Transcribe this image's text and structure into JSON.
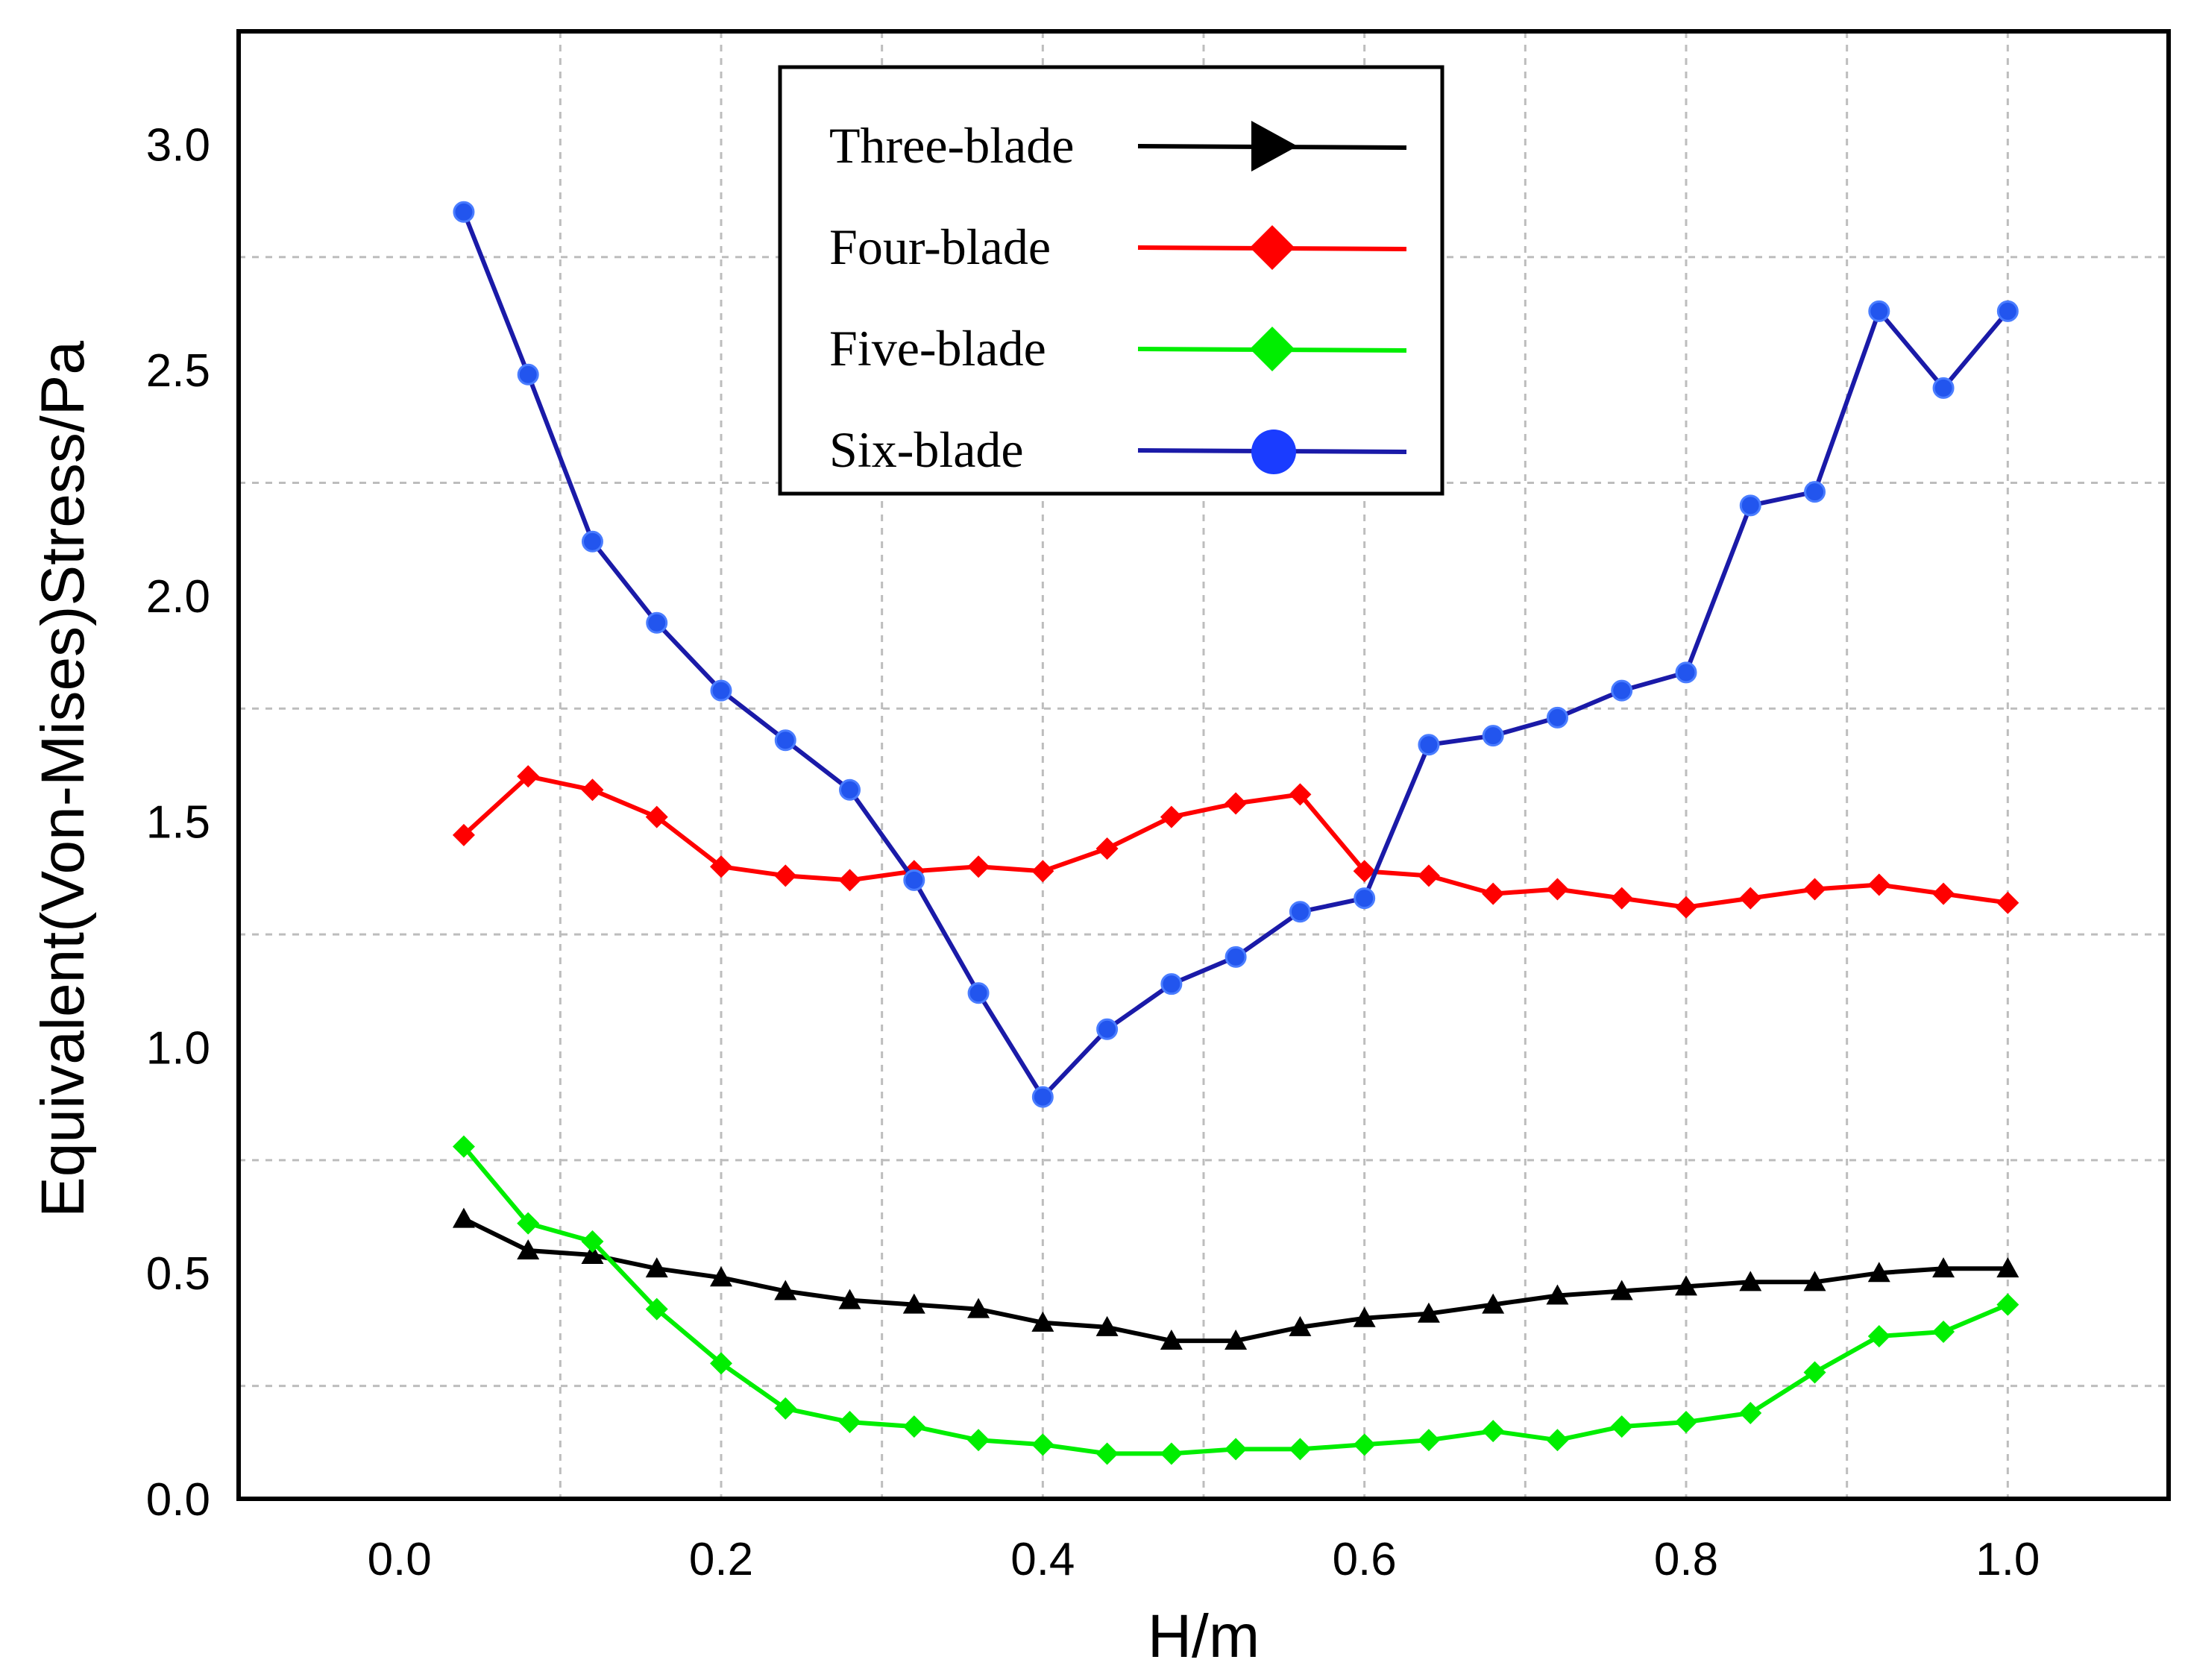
{
  "chart_data": {
    "type": "line",
    "title": "",
    "xlabel": "H/m",
    "ylabel": "Equivalent(Von-Mises)Stress/Pa",
    "xlim": [
      -0.1,
      1.1
    ],
    "ylim": [
      0.0,
      3.25
    ],
    "xticks": [
      "0.0",
      "0.2",
      "0.4",
      "0.6",
      "0.8",
      "1.0"
    ],
    "yticks": [
      "0.0",
      "0.5",
      "1.0",
      "1.5",
      "2.0",
      "2.5",
      "3.0"
    ],
    "grid": true,
    "legend_position": "top-center",
    "x": [
      0.04,
      0.08,
      0.12,
      0.16,
      0.2,
      0.24,
      0.28,
      0.32,
      0.36,
      0.4,
      0.44,
      0.48,
      0.52,
      0.56,
      0.6,
      0.64,
      0.68,
      0.72,
      0.76,
      0.8,
      0.84,
      0.88,
      0.92,
      0.96,
      1.0
    ],
    "series": [
      {
        "name": "Three-blade",
        "color": "#000000",
        "marker": "triangle",
        "values": [
          0.62,
          0.55,
          0.54,
          0.51,
          0.49,
          0.46,
          0.44,
          0.43,
          0.42,
          0.39,
          0.38,
          0.35,
          0.35,
          0.38,
          0.4,
          0.41,
          0.43,
          0.45,
          0.46,
          0.47,
          0.48,
          0.48,
          0.5,
          0.51,
          0.51
        ]
      },
      {
        "name": "Four-blade",
        "color": "#ff0000",
        "marker": "diamond",
        "values": [
          1.47,
          1.6,
          1.57,
          1.51,
          1.4,
          1.38,
          1.37,
          1.39,
          1.4,
          1.39,
          1.44,
          1.51,
          1.54,
          1.56,
          1.39,
          1.38,
          1.34,
          1.35,
          1.33,
          1.31,
          1.33,
          1.35,
          1.36,
          1.34,
          1.32
        ]
      },
      {
        "name": "Five-blade",
        "color": "#00ee00",
        "marker": "diamond",
        "values": [
          0.78,
          0.61,
          0.57,
          0.42,
          0.3,
          0.2,
          0.17,
          0.16,
          0.13,
          0.12,
          0.1,
          0.1,
          0.11,
          0.11,
          0.12,
          0.13,
          0.15,
          0.13,
          0.16,
          0.17,
          0.19,
          0.28,
          0.36,
          0.37,
          0.43
        ]
      },
      {
        "name": "Six-blade",
        "color": "#1a1aa8",
        "marker_color": "#2255ee",
        "marker": "circle",
        "values": [
          2.85,
          2.49,
          2.12,
          1.94,
          1.79,
          1.68,
          1.57,
          1.37,
          1.12,
          0.89,
          1.04,
          1.14,
          1.2,
          1.3,
          1.33,
          1.67,
          1.69,
          1.73,
          1.79,
          1.83,
          2.2,
          2.23,
          2.63,
          2.46,
          2.63
        ]
      }
    ]
  }
}
